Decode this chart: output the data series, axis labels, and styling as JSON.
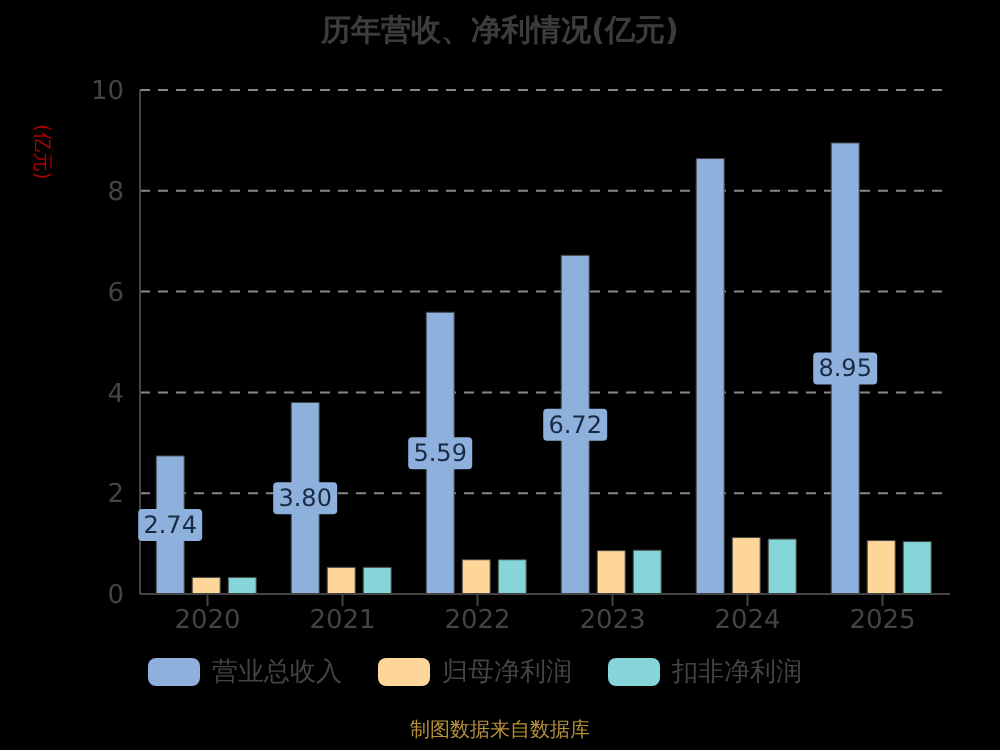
{
  "chart_data": {
    "type": "bar",
    "title": "历年营收、净利情况(亿元)",
    "ylabel": "(亿元)",
    "categories": [
      "2020",
      "2021",
      "2022",
      "2023",
      "2024",
      "2025"
    ],
    "series": [
      {
        "name": "营业总收入",
        "color": "#8eb0dd",
        "values": [
          2.74,
          3.8,
          5.59,
          6.72,
          8.64,
          8.95
        ],
        "value_labels": [
          "2.74",
          "3.80",
          "5.59",
          "6.72",
          null,
          "8.95"
        ]
      },
      {
        "name": "归母净利润",
        "color": "#ffd699",
        "values": [
          0.33,
          0.53,
          0.68,
          0.86,
          1.12,
          1.06
        ]
      },
      {
        "name": "扣非净利润",
        "color": "#86d5d8",
        "values": [
          0.33,
          0.53,
          0.68,
          0.87,
          1.09,
          1.04
        ]
      }
    ],
    "ylim": [
      0,
      10
    ],
    "yticks": [
      0,
      2,
      4,
      6,
      8,
      10
    ],
    "grid": "y",
    "legend": "bottom",
    "annotations": [
      "制图数据来自数据库"
    ]
  }
}
